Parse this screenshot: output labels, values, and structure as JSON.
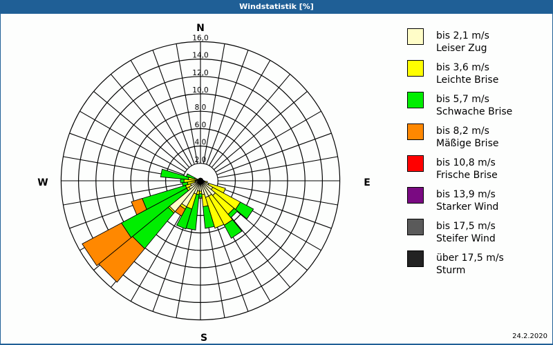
{
  "window": {
    "title": "Windstatistik [%]"
  },
  "footer": {
    "date": "24.2.2020"
  },
  "compass": {
    "n": "N",
    "e": "E",
    "s": "S",
    "w": "W"
  },
  "legend": [
    {
      "range": "bis 2,1 m/s",
      "name": "Leiser Zug",
      "color": "#fffdc8"
    },
    {
      "range": "bis 3,6 m/s",
      "name": "Leichte Brise",
      "color": "#ffff00"
    },
    {
      "range": "bis 5,7 m/s",
      "name": "Schwache Brise",
      "color": "#00ee00"
    },
    {
      "range": "bis 8,2 m/s",
      "name": "Mäßige Brise",
      "color": "#ff8800"
    },
    {
      "range": "bis 10,8 m/s",
      "name": "Frische Brise",
      "color": "#ff0000"
    },
    {
      "range": "bis 13,9 m/s",
      "name": "Starker Wind",
      "color": "#7a0a82"
    },
    {
      "range": "bis 17,5 m/s",
      "name": "Steifer Wind",
      "color": "#5a5a5a"
    },
    {
      "range": "über 17,5 m/s",
      "name": "Sturm",
      "color": "#222222"
    }
  ],
  "chart_data": {
    "type": "polar-bar (wind rose)",
    "title": "Windstatistik [%]",
    "radial_ticks": [
      "2,0",
      "4,0",
      "6,0",
      "8,0",
      "10,0",
      "12,0",
      "14,0",
      "16,0"
    ],
    "radial_max": 16,
    "unit": "%",
    "sector_width_deg": 11.25,
    "series_names": [
      "Leiser Zug",
      "Leichte Brise",
      "Schwache Brise",
      "Mäßige Brise",
      "Frische Brise",
      "Starker Wind",
      "Steifer Wind",
      "Sturm"
    ],
    "directions": [
      {
        "deg": 0,
        "segments": [
          0.3,
          0,
          0,
          0
        ]
      },
      {
        "deg": 11.25,
        "segments": [
          0.3,
          0,
          0,
          0
        ]
      },
      {
        "deg": 22.5,
        "segments": [
          0.3,
          0,
          0,
          0
        ]
      },
      {
        "deg": 33.75,
        "segments": [
          0.3,
          0,
          0,
          0
        ]
      },
      {
        "deg": 45,
        "segments": [
          0.3,
          0,
          0,
          0
        ]
      },
      {
        "deg": 56.25,
        "segments": [
          0.3,
          0,
          0,
          0
        ]
      },
      {
        "deg": 67.5,
        "segments": [
          0.3,
          0,
          0,
          0
        ]
      },
      {
        "deg": 78.75,
        "segments": [
          0.3,
          0,
          0,
          0
        ]
      },
      {
        "deg": 90,
        "segments": [
          0.4,
          0,
          0,
          0
        ]
      },
      {
        "deg": 101.25,
        "segments": [
          0.5,
          0.3,
          0,
          0
        ]
      },
      {
        "deg": 112.5,
        "segments": [
          1.0,
          2.0,
          0,
          0
        ]
      },
      {
        "deg": 123.75,
        "segments": [
          1.6,
          3.6,
          1.7,
          0
        ]
      },
      {
        "deg": 135,
        "segments": [
          2.2,
          2.8,
          0.5,
          0
        ]
      },
      {
        "deg": 146.25,
        "segments": [
          2.0,
          3.8,
          1.7,
          0
        ]
      },
      {
        "deg": 157.5,
        "segments": [
          2.0,
          3.7,
          0,
          0
        ]
      },
      {
        "deg": 168.75,
        "segments": [
          1.6,
          1.4,
          2.5,
          0
        ]
      },
      {
        "deg": 180,
        "segments": [
          1.2,
          0.3,
          0.4,
          0
        ]
      },
      {
        "deg": 191.25,
        "segments": [
          1.2,
          0.4,
          4.1,
          0
        ]
      },
      {
        "deg": 202.5,
        "segments": [
          1.6,
          1.8,
          2.4,
          0
        ]
      },
      {
        "deg": 213.75,
        "segments": [
          3.4,
          0.3,
          0,
          0.9
        ]
      },
      {
        "deg": 225,
        "segments": [
          4.6,
          0.2,
          5.3,
          5.0
        ]
      },
      {
        "deg": 236.25,
        "segments": [
          1.5,
          0.3,
          8.5,
          5.1
        ]
      },
      {
        "deg": 247.5,
        "segments": [
          1.2,
          0.6,
          5.2,
          1.3
        ]
      },
      {
        "deg": 258.75,
        "segments": [
          0.6,
          0.9,
          0.6,
          0
        ]
      },
      {
        "deg": 270,
        "segments": [
          0.6,
          1.3,
          0.4,
          0
        ]
      },
      {
        "deg": 281.25,
        "segments": [
          0.5,
          0.9,
          3.2,
          0
        ]
      },
      {
        "deg": 292.5,
        "segments": [
          0.3,
          0.4,
          1.0,
          0
        ]
      },
      {
        "deg": 303.75,
        "segments": [
          0.3,
          0,
          0,
          0
        ]
      },
      {
        "deg": 315,
        "segments": [
          0.3,
          0,
          0,
          0
        ]
      },
      {
        "deg": 326.25,
        "segments": [
          0.3,
          0,
          0,
          0
        ]
      },
      {
        "deg": 337.5,
        "segments": [
          0.3,
          0,
          0,
          0
        ]
      },
      {
        "deg": 348.75,
        "segments": [
          0.3,
          0,
          0,
          0
        ]
      }
    ]
  }
}
